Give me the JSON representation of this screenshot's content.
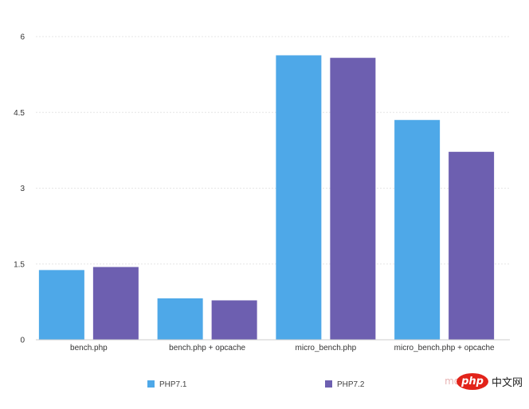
{
  "chart_data": {
    "type": "bar",
    "categories": [
      "bench.php",
      "bench.php + opcache",
      "micro_bench.php",
      "micro_bench.php + opcache"
    ],
    "series": [
      {
        "name": "PHP7.1",
        "color": "#4ea8e8",
        "values": [
          1.38,
          0.82,
          5.63,
          4.35
        ]
      },
      {
        "name": "PHP7.2",
        "color": "#6d5fb0",
        "values": [
          1.44,
          0.78,
          5.58,
          3.72
        ]
      }
    ],
    "yticks": [
      "0",
      "1.5",
      "3",
      "4.5",
      "6"
    ],
    "ylim": [
      0,
      6
    ],
    "grid": true,
    "legend_position": "bottom"
  },
  "watermark": {
    "faint_text": "mo",
    "logo_text": "php",
    "text": "中文网"
  }
}
